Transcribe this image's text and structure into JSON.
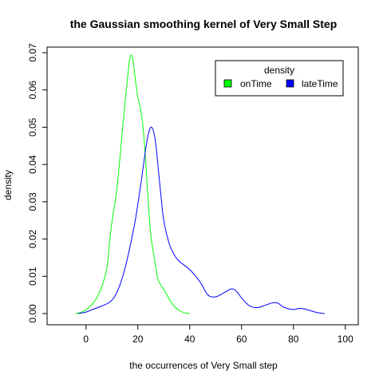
{
  "chart_data": {
    "type": "line",
    "title": "the Gaussian smoothing kernel of Very Small Step",
    "xlabel": "the occurrences of Very Small step",
    "ylabel": "density",
    "xlim": [
      -15,
      105
    ],
    "ylim": [
      -0.003,
      0.0715
    ],
    "xticks": [
      0,
      20,
      40,
      60,
      80,
      100
    ],
    "yticks": [
      0.0,
      0.01,
      0.02,
      0.03,
      0.04,
      0.05,
      0.06,
      0.07
    ],
    "ytick_labels": [
      "0.00",
      "0.01",
      "0.02",
      "0.03",
      "0.04",
      "0.05",
      "0.06",
      "0.07"
    ],
    "grid": false,
    "legend": {
      "title": "density",
      "placement": "top-right",
      "entries": [
        {
          "name": "onTime",
          "color": "#00ff00"
        },
        {
          "name": "lateTime",
          "color": "#0000ff"
        }
      ]
    },
    "series": [
      {
        "name": "onTime",
        "color": "#00ff00",
        "points": [
          [
            -4,
            0.0
          ],
          [
            -2,
            0.0003
          ],
          [
            0,
            0.001
          ],
          [
            2,
            0.0022
          ],
          [
            4,
            0.004
          ],
          [
            6,
            0.007
          ],
          [
            8,
            0.012
          ],
          [
            9,
            0.0185
          ],
          [
            10,
            0.0245
          ],
          [
            11,
            0.029
          ],
          [
            12,
            0.034
          ],
          [
            13,
            0.041
          ],
          [
            14,
            0.049
          ],
          [
            15,
            0.056
          ],
          [
            16,
            0.063
          ],
          [
            17,
            0.0688
          ],
          [
            18,
            0.0685
          ],
          [
            19,
            0.063
          ],
          [
            20,
            0.058
          ],
          [
            21,
            0.055
          ],
          [
            22,
            0.05
          ],
          [
            23,
            0.041
          ],
          [
            24,
            0.03
          ],
          [
            25,
            0.021
          ],
          [
            26,
            0.0165
          ],
          [
            27,
            0.012
          ],
          [
            28,
            0.0088
          ],
          [
            30,
            0.0065
          ],
          [
            32,
            0.004
          ],
          [
            34,
            0.002
          ],
          [
            36,
            0.0008
          ],
          [
            38,
            0.0002
          ],
          [
            40,
            0.0
          ]
        ]
      },
      {
        "name": "lateTime",
        "color": "#0000ff",
        "points": [
          [
            -3,
            0.0
          ],
          [
            0,
            0.0004
          ],
          [
            3,
            0.0012
          ],
          [
            6,
            0.002
          ],
          [
            9,
            0.003
          ],
          [
            11,
            0.0045
          ],
          [
            13,
            0.0075
          ],
          [
            15,
            0.012
          ],
          [
            17,
            0.018
          ],
          [
            19,
            0.025
          ],
          [
            21,
            0.034
          ],
          [
            22,
            0.039
          ],
          [
            23,
            0.044
          ],
          [
            24,
            0.048
          ],
          [
            25,
            0.05
          ],
          [
            26,
            0.049
          ],
          [
            27,
            0.045
          ],
          [
            28,
            0.038
          ],
          [
            29,
            0.031
          ],
          [
            30,
            0.025
          ],
          [
            32,
            0.019
          ],
          [
            34,
            0.0158
          ],
          [
            36,
            0.014
          ],
          [
            40,
            0.0118
          ],
          [
            44,
            0.0085
          ],
          [
            47,
            0.005
          ],
          [
            50,
            0.0045
          ],
          [
            53,
            0.0055
          ],
          [
            56,
            0.0066
          ],
          [
            58,
            0.006
          ],
          [
            60,
            0.0042
          ],
          [
            63,
            0.0021
          ],
          [
            66,
            0.0016
          ],
          [
            69,
            0.0022
          ],
          [
            72,
            0.0029
          ],
          [
            74,
            0.0028
          ],
          [
            76,
            0.0018
          ],
          [
            78,
            0.0013
          ],
          [
            80,
            0.0011
          ],
          [
            83,
            0.0014
          ],
          [
            86,
            0.0009
          ],
          [
            89,
            0.0003
          ],
          [
            92,
            0.0
          ]
        ]
      }
    ]
  }
}
